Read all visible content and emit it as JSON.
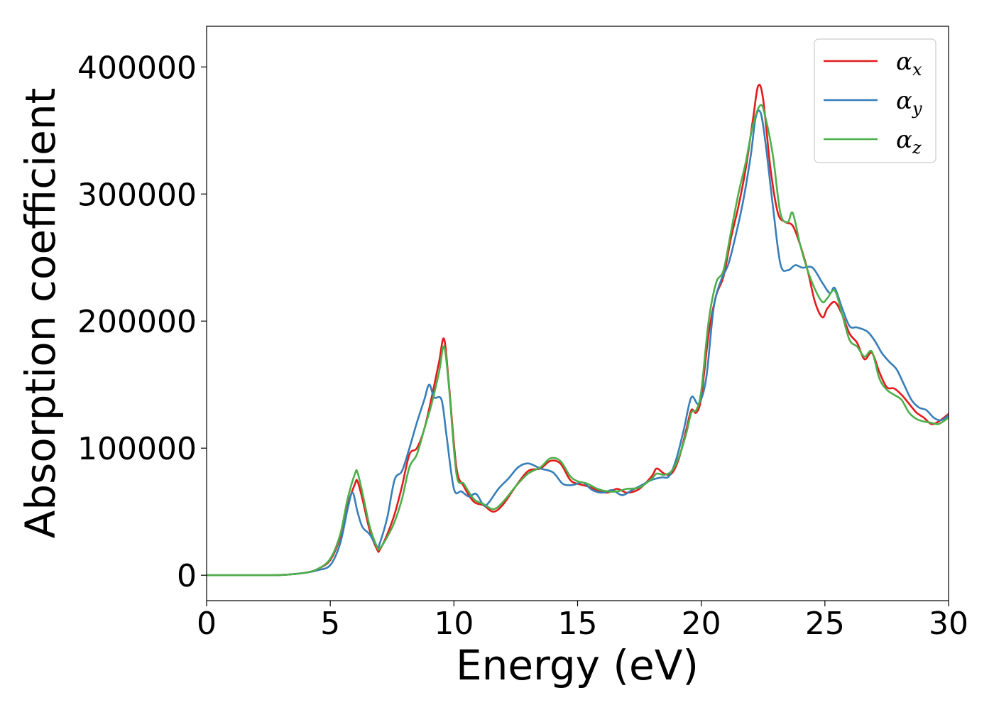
{
  "chart_data": {
    "type": "line",
    "title": "",
    "xlabel": "Energy (eV)",
    "ylabel": "Absorption coefficient",
    "xlim": [
      0,
      30
    ],
    "ylim": [
      -20000,
      432000
    ],
    "xticks": [
      0,
      5,
      10,
      15,
      20,
      25,
      30
    ],
    "xtick_labels": [
      "0",
      "5",
      "10",
      "15",
      "20",
      "25",
      "30"
    ],
    "yticks": [
      0,
      100000,
      200000,
      300000,
      400000
    ],
    "ytick_labels": [
      "0",
      "100000",
      "200000",
      "300000",
      "400000"
    ],
    "grid": false,
    "legend_position": "top-right",
    "series": [
      {
        "name": "α",
        "subscript": "x",
        "color": "#e41a1c",
        "x": [
          0,
          1,
          2,
          3,
          4,
          4.5,
          5,
          5.4,
          5.7,
          6.0,
          6.1,
          6.3,
          6.6,
          6.9,
          7.0,
          7.3,
          7.6,
          7.9,
          8.2,
          8.5,
          8.8,
          9.1,
          9.4,
          9.6,
          9.8,
          10.1,
          10.4,
          10.8,
          11.2,
          11.6,
          12.0,
          12.5,
          13.0,
          13.5,
          13.9,
          14.3,
          14.7,
          15.0,
          15.4,
          15.8,
          16.2,
          16.6,
          17.0,
          17.5,
          18.0,
          18.2,
          18.5,
          18.8,
          19.1,
          19.4,
          19.6,
          19.8,
          20.0,
          20.3,
          20.6,
          20.9,
          21.2,
          21.5,
          21.8,
          22.1,
          22.3,
          22.5,
          22.8,
          23.1,
          23.4,
          23.7,
          24.0,
          24.3,
          24.6,
          24.9,
          25.1,
          25.4,
          25.7,
          26.0,
          26.3,
          26.6,
          26.9,
          27.2,
          27.5,
          27.8,
          28.1,
          28.4,
          28.7,
          29.0,
          29.3,
          29.6,
          30.0
        ],
        "y": [
          0,
          0,
          0,
          200,
          2000,
          5000,
          12000,
          30000,
          55000,
          72000,
          74000,
          60000,
          35000,
          20000,
          20000,
          32000,
          48000,
          70000,
          95000,
          100000,
          115000,
          140000,
          168000,
          186000,
          150000,
          85000,
          70000,
          58000,
          55000,
          50000,
          56000,
          70000,
          82000,
          84000,
          90000,
          88000,
          75000,
          72000,
          70000,
          67000,
          65000,
          68000,
          65000,
          68000,
          78000,
          84000,
          80000,
          80000,
          92000,
          115000,
          130000,
          128000,
          140000,
          190000,
          220000,
          235000,
          265000,
          290000,
          320000,
          360000,
          385000,
          375000,
          320000,
          285000,
          278000,
          275000,
          260000,
          240000,
          215000,
          203000,
          210000,
          215000,
          205000,
          190000,
          183000,
          170000,
          175000,
          160000,
          148000,
          147000,
          142000,
          135000,
          128000,
          124000,
          119000,
          121000,
          127000
        ]
      },
      {
        "name": "α",
        "subscript": "y",
        "color": "#377eb8",
        "x": [
          0,
          1,
          2,
          3,
          4,
          4.5,
          5,
          5.4,
          5.7,
          5.9,
          6.1,
          6.3,
          6.6,
          6.9,
          7.0,
          7.3,
          7.6,
          7.9,
          8.2,
          8.5,
          8.8,
          9.0,
          9.2,
          9.5,
          9.7,
          10.0,
          10.3,
          10.6,
          10.9,
          11.2,
          11.4,
          11.8,
          12.2,
          12.6,
          13.0,
          13.5,
          14.0,
          14.4,
          14.8,
          15.2,
          15.6,
          16.0,
          16.4,
          16.8,
          17.2,
          17.6,
          18.0,
          18.4,
          18.7,
          19.0,
          19.3,
          19.6,
          19.9,
          20.2,
          20.5,
          20.8,
          21.1,
          21.4,
          21.7,
          22.0,
          22.2,
          22.4,
          22.6,
          22.9,
          23.2,
          23.5,
          23.8,
          24.1,
          24.5,
          24.9,
          25.2,
          25.4,
          25.7,
          26.0,
          26.3,
          26.7,
          27.0,
          27.3,
          27.6,
          27.9,
          28.2,
          28.5,
          28.8,
          29.1,
          29.4,
          29.7,
          30.0
        ],
        "y": [
          0,
          0,
          0,
          200,
          2000,
          4000,
          8000,
          25000,
          52000,
          65000,
          50000,
          38000,
          32000,
          22000,
          25000,
          45000,
          75000,
          82000,
          100000,
          120000,
          138000,
          150000,
          140000,
          138000,
          110000,
          68000,
          66000,
          62000,
          64000,
          55000,
          57000,
          68000,
          76000,
          85000,
          88000,
          84000,
          81000,
          72000,
          71000,
          73000,
          67000,
          65000,
          67000,
          63000,
          67000,
          71000,
          75000,
          77000,
          78000,
          92000,
          115000,
          140000,
          135000,
          155000,
          210000,
          232000,
          245000,
          268000,
          295000,
          330000,
          360000,
          364000,
          340000,
          290000,
          245000,
          240000,
          244000,
          242000,
          242000,
          230000,
          222000,
          226000,
          210000,
          196000,
          195000,
          192000,
          185000,
          175000,
          168000,
          162000,
          150000,
          138000,
          132000,
          130000,
          124000,
          122000,
          126000
        ]
      },
      {
        "name": "α",
        "subscript": "z",
        "color": "#4daf4a",
        "x": [
          0,
          1,
          2,
          3,
          4,
          4.5,
          5,
          5.4,
          5.7,
          6.0,
          6.1,
          6.3,
          6.6,
          6.9,
          7.0,
          7.3,
          7.6,
          7.9,
          8.2,
          8.5,
          8.8,
          9.1,
          9.4,
          9.6,
          9.8,
          10.1,
          10.4,
          10.8,
          11.2,
          11.6,
          12.0,
          12.5,
          13.0,
          13.5,
          13.9,
          14.3,
          14.7,
          15.0,
          15.4,
          15.8,
          16.2,
          16.6,
          17.0,
          17.5,
          18.0,
          18.2,
          18.5,
          18.8,
          19.1,
          19.4,
          19.6,
          19.8,
          20.0,
          20.3,
          20.6,
          20.9,
          21.2,
          21.5,
          21.8,
          22.1,
          22.4,
          22.6,
          22.9,
          23.2,
          23.5,
          23.7,
          24.0,
          24.3,
          24.6,
          24.9,
          25.1,
          25.4,
          25.7,
          26.0,
          26.3,
          26.6,
          26.9,
          27.2,
          27.5,
          27.8,
          28.1,
          28.4,
          28.7,
          29.0,
          29.3,
          29.6,
          30.0
        ],
        "y": [
          0,
          0,
          0,
          200,
          2000,
          5000,
          13000,
          32000,
          60000,
          80000,
          81000,
          65000,
          38000,
          22000,
          21000,
          30000,
          42000,
          60000,
          85000,
          95000,
          115000,
          135000,
          160000,
          180000,
          148000,
          80000,
          72000,
          60000,
          56000,
          52000,
          58000,
          70000,
          80000,
          85000,
          92000,
          90000,
          78000,
          74000,
          72000,
          68000,
          66000,
          66000,
          68000,
          69000,
          76000,
          80000,
          79000,
          82000,
          93000,
          112000,
          128000,
          130000,
          145000,
          200000,
          230000,
          240000,
          270000,
          300000,
          325000,
          355000,
          370000,
          360000,
          330000,
          285000,
          278000,
          285000,
          260000,
          240000,
          225000,
          215000,
          218000,
          224000,
          205000,
          185000,
          180000,
          172000,
          176000,
          155000,
          146000,
          142000,
          138000,
          128000,
          123000,
          121000,
          120000,
          119000,
          124000
        ]
      }
    ]
  }
}
